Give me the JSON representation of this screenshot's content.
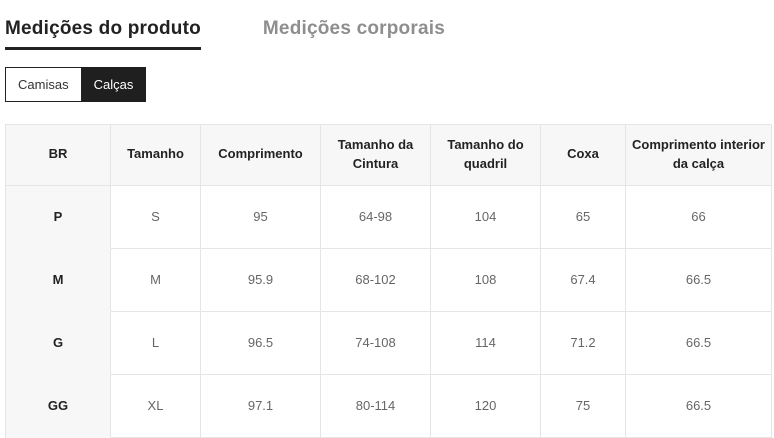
{
  "tabs": [
    {
      "label": "Medições do produto",
      "active": true
    },
    {
      "label": "Medições corporais",
      "active": false
    }
  ],
  "toggle": [
    {
      "label": "Camisas",
      "active": false
    },
    {
      "label": "Calças",
      "active": true
    }
  ],
  "size_table": {
    "columns": [
      "BR",
      "Tamanho",
      "Comprimento",
      "Tamanho da Cintura",
      "Tamanho do quadril",
      "Coxa",
      "Comprimento interior da calça"
    ],
    "rows": [
      [
        "P",
        "S",
        "95",
        "64-98",
        "104",
        "65",
        "66"
      ],
      [
        "M",
        "M",
        "95.9",
        "68-102",
        "108",
        "67.4",
        "66.5"
      ],
      [
        "G",
        "L",
        "96.5",
        "74-108",
        "114",
        "71.2",
        "66.5"
      ],
      [
        "GG",
        "XL",
        "97.1",
        "80-114",
        "120",
        "75",
        "66.5"
      ]
    ]
  },
  "colors": {
    "active_tab_text": "#222222",
    "active_tab_underline": "#222222",
    "inactive_tab_text": "#8e8e8e",
    "toggle_active_bg": "#1f1f1f",
    "toggle_active_text": "#ffffff",
    "toggle_inactive_bg": "#ffffff",
    "table_header_bg": "#f7f7f7",
    "table_border": "#e5e5e5",
    "table_body_text": "#666666"
  }
}
